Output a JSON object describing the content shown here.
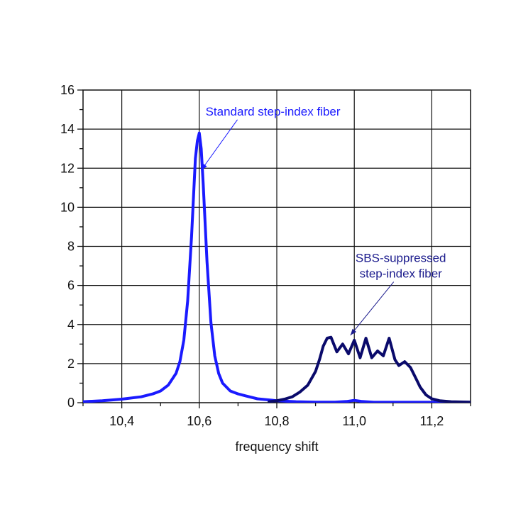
{
  "chart_data": {
    "type": "line",
    "title": "",
    "xlabel": "frequency shift",
    "ylabel": "",
    "xlim": [
      10.3,
      11.3
    ],
    "ylim": [
      0,
      16
    ],
    "grid": true,
    "x_ticks": [
      10.4,
      10.6,
      10.8,
      11.0,
      11.2
    ],
    "x_tick_labels": [
      "10,4",
      "10,6",
      "10,8",
      "11,0",
      "11,2"
    ],
    "y_ticks": [
      0,
      2,
      4,
      6,
      8,
      10,
      12,
      14,
      16
    ],
    "y_tick_labels": [
      "0",
      "2",
      "4",
      "6",
      "8",
      "10",
      "12",
      "14",
      "16"
    ],
    "series": [
      {
        "color": "#1a1aff",
        "x": [
          10.3,
          10.35,
          10.4,
          10.45,
          10.48,
          10.5,
          10.52,
          10.54,
          10.55,
          10.56,
          10.57,
          10.58,
          10.59,
          10.595,
          10.6,
          10.605,
          10.61,
          10.62,
          10.63,
          10.64,
          10.65,
          10.66,
          10.68,
          10.7,
          10.72,
          10.75,
          10.8,
          10.85,
          10.9,
          10.95,
          10.98,
          11.0,
          11.02,
          11.05,
          11.1,
          11.2,
          11.3
        ],
        "y": [
          0.05,
          0.1,
          0.18,
          0.3,
          0.45,
          0.6,
          0.9,
          1.5,
          2.1,
          3.2,
          5.2,
          8.5,
          12.5,
          13.4,
          13.8,
          13.0,
          11.2,
          7.2,
          4.1,
          2.4,
          1.5,
          1.0,
          0.6,
          0.45,
          0.35,
          0.2,
          0.1,
          0.05,
          0.03,
          0.03,
          0.06,
          0.12,
          0.06,
          0.02,
          0.02,
          0.02,
          0.02
        ]
      },
      {
        "color": "#0a0a6b",
        "x": [
          10.78,
          10.8,
          10.82,
          10.84,
          10.86,
          10.88,
          10.9,
          10.91,
          10.92,
          10.93,
          10.94,
          10.955,
          10.97,
          10.985,
          11.0,
          11.015,
          11.03,
          11.045,
          11.06,
          11.075,
          11.09,
          11.105,
          11.115,
          11.13,
          11.145,
          11.16,
          11.17,
          11.185,
          11.2,
          11.22,
          11.25,
          11.3
        ],
        "y": [
          0.05,
          0.1,
          0.18,
          0.3,
          0.55,
          0.9,
          1.6,
          2.2,
          2.9,
          3.3,
          3.35,
          2.6,
          3.0,
          2.5,
          3.2,
          2.3,
          3.3,
          2.3,
          2.65,
          2.4,
          3.3,
          2.2,
          1.9,
          2.1,
          1.8,
          1.2,
          0.8,
          0.4,
          0.2,
          0.1,
          0.05,
          0.03
        ]
      }
    ],
    "annotations": [
      {
        "lines": [
          "Standard step-index fiber"
        ],
        "color": "#1a1aff",
        "at": [
          10.79,
          14.7
        ],
        "arrow_to": [
          10.605,
          11.9
        ]
      },
      {
        "lines": [
          "SBS-suppressed",
          "step-index fiber"
        ],
        "color": "#1a1a8c",
        "at": [
          11.12,
          7.2
        ],
        "arrow_to": [
          10.99,
          3.45
        ]
      }
    ]
  }
}
